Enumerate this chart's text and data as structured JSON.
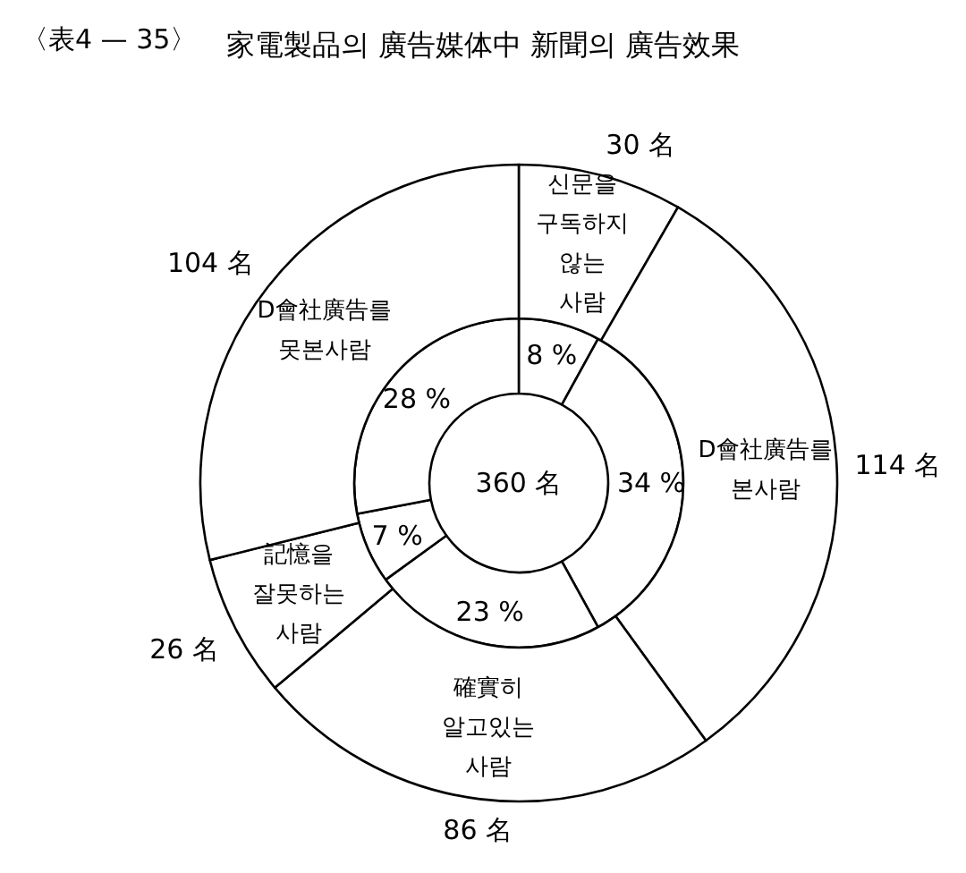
{
  "chart_data": {
    "type": "donut",
    "title": "家電製品의 廣告媒体中 新聞의 廣告效果",
    "annotations": [
      "〈表4 — 35〉",
      "360 名"
    ],
    "categories": [
      "신문을 구독하지 않는 사람",
      "D會社廣告를 본사람",
      "確實히 알고있는 사람",
      "記憶을 잘못하는 사람",
      "D會社廣告를 못본사람"
    ],
    "series": [
      {
        "color": "#ffffff",
        "values": [
          8,
          34,
          23,
          7,
          28
        ],
        "value_labels": [
          "8 %",
          "34 %",
          "23 %",
          "7 %",
          "28 %"
        ]
      },
      {
        "color": "#ffffff",
        "values": [
          30,
          114,
          86,
          26,
          104
        ],
        "value_labels": [
          "30 名",
          "114 名",
          "86 名",
          "26 名",
          "104 名"
        ]
      }
    ]
  }
}
